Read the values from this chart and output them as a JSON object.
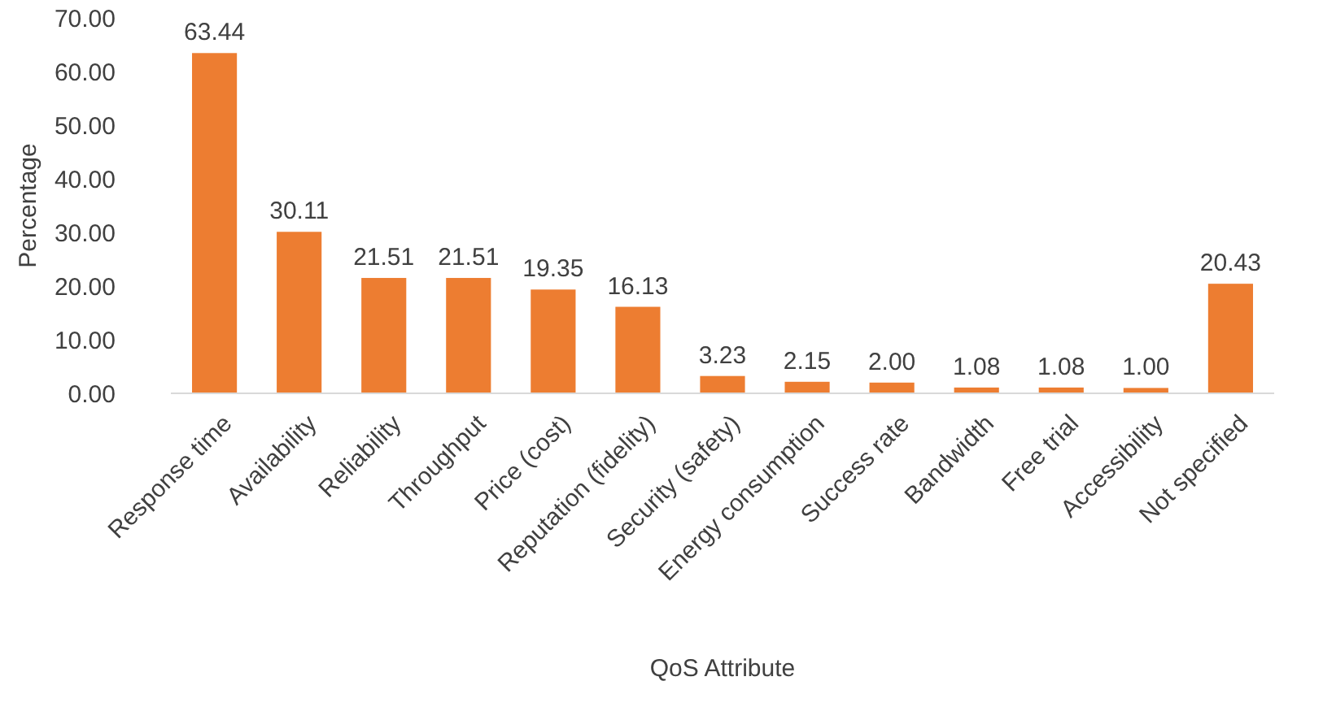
{
  "chart_data": {
    "type": "bar",
    "xlabel": "QoS Attribute",
    "ylabel": "Percentage",
    "categories": [
      "Response time",
      "Availability",
      "Reliability",
      "Throughput",
      "Price (cost)",
      "Reputation (fidelity)",
      "Security (safety)",
      "Energy consumption",
      "Success rate",
      "Bandwidth",
      "Free trial",
      "Accessibility",
      "Not specified"
    ],
    "values": [
      63.44,
      30.11,
      21.51,
      21.51,
      19.35,
      16.13,
      3.23,
      2.15,
      2.0,
      1.08,
      1.08,
      1.0,
      20.43
    ],
    "value_labels": [
      "63.44",
      "30.11",
      "21.51",
      "21.51",
      "19.35",
      "16.13",
      "3.23",
      "2.15",
      "2.00",
      "1.08",
      "1.08",
      "1.00",
      "20.43"
    ],
    "color": "#ed7d31",
    "ylim": [
      0,
      70
    ],
    "yticks": [
      {
        "value": 0,
        "label": "0.00"
      },
      {
        "value": 10,
        "label": "10.00"
      },
      {
        "value": 20,
        "label": "20.00"
      },
      {
        "value": 30,
        "label": "30.00"
      },
      {
        "value": 40,
        "label": "40.00"
      },
      {
        "value": 50,
        "label": "50.00"
      },
      {
        "value": 60,
        "label": "60.00"
      },
      {
        "value": 70,
        "label": "70.00"
      }
    ],
    "grid": false
  }
}
